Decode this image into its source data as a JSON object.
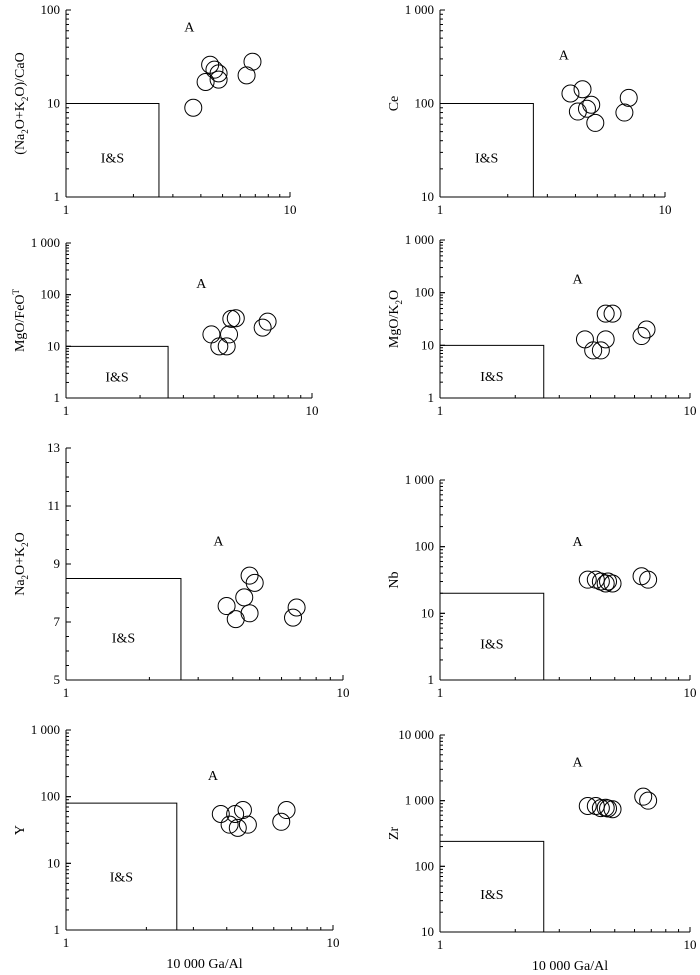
{
  "chart_data": [
    {
      "type": "scatter",
      "x_scale": "log",
      "y_scale": "log",
      "xlim": [
        1,
        10
      ],
      "ylim": [
        1,
        100
      ],
      "x_ticks": [
        "1",
        "10"
      ],
      "y_ticks": [
        "1",
        "10",
        "100"
      ],
      "xlabel": "",
      "ylabel_html": "(Na<tspan dy='4' font-size='9'>2</tspan><tspan dy='-4'>O+K</tspan><tspan dy='4' font-size='9'>2</tspan><tspan dy='-4'>O)/CaO</tspan>",
      "ylabel": "(Na2O+K2O)/CaO",
      "field_box": {
        "x": [
          1,
          2.6
        ],
        "y": [
          1,
          10
        ]
      },
      "region_labels": {
        "inside": "I&S",
        "outside": "A"
      },
      "points": [
        [
          3.7,
          9
        ],
        [
          4.2,
          17
        ],
        [
          4.4,
          26
        ],
        [
          4.6,
          23
        ],
        [
          4.8,
          18
        ],
        [
          4.8,
          21
        ],
        [
          6.4,
          20
        ],
        [
          6.8,
          28
        ]
      ]
    },
    {
      "type": "scatter",
      "x_scale": "log",
      "y_scale": "log",
      "xlim": [
        1,
        10
      ],
      "ylim": [
        10,
        1000
      ],
      "x_ticks": [
        "1",
        "10"
      ],
      "y_ticks": [
        "10",
        "100",
        "1 000"
      ],
      "xlabel": "",
      "ylabel": "Ce",
      "field_box": {
        "x": [
          1,
          2.6
        ],
        "y": [
          10,
          100
        ]
      },
      "region_labels": {
        "inside": "I&S",
        "outside": "A"
      },
      "points": [
        [
          3.8,
          128
        ],
        [
          4.1,
          82
        ],
        [
          4.3,
          142
        ],
        [
          4.5,
          88
        ],
        [
          4.7,
          97
        ],
        [
          4.9,
          62
        ],
        [
          6.6,
          80
        ],
        [
          6.9,
          115
        ]
      ]
    },
    {
      "type": "scatter",
      "x_scale": "log",
      "y_scale": "log",
      "xlim": [
        1,
        10
      ],
      "ylim": [
        1,
        1000
      ],
      "x_ticks": [
        "1",
        "10"
      ],
      "y_ticks": [
        "1",
        "10",
        "100",
        "1 000"
      ],
      "xlabel": "",
      "ylabel_html": "MgO/FeO<tspan dy='-5' font-size='9'>T</tspan>",
      "ylabel": "MgO/FeOT",
      "field_box": {
        "x": [
          1,
          2.6
        ],
        "y": [
          1,
          10
        ]
      },
      "region_labels": {
        "inside": "I&S",
        "outside": "A"
      },
      "points": [
        [
          3.9,
          17
        ],
        [
          4.2,
          10
        ],
        [
          4.5,
          10
        ],
        [
          4.6,
          17
        ],
        [
          4.7,
          34
        ],
        [
          4.9,
          35
        ],
        [
          6.3,
          23
        ],
        [
          6.6,
          30
        ]
      ]
    },
    {
      "type": "scatter",
      "x_scale": "log",
      "y_scale": "log",
      "xlim": [
        1,
        10
      ],
      "ylim": [
        1,
        1000
      ],
      "x_ticks": [
        "1",
        "10"
      ],
      "y_ticks": [
        "1",
        "10",
        "100",
        "1 000"
      ],
      "xlabel": "",
      "ylabel_html": "MgO/K<tspan dy='4' font-size='9'>2</tspan><tspan dy='-4'>O</tspan>",
      "ylabel": "MgO/K2O",
      "field_box": {
        "x": [
          1,
          2.6
        ],
        "y": [
          1,
          10
        ]
      },
      "region_labels": {
        "inside": "I&S",
        "outside": "A"
      },
      "points": [
        [
          3.8,
          13
        ],
        [
          4.1,
          8
        ],
        [
          4.4,
          8
        ],
        [
          4.6,
          13
        ],
        [
          4.6,
          40
        ],
        [
          4.9,
          40
        ],
        [
          6.4,
          15
        ],
        [
          6.7,
          20
        ]
      ]
    },
    {
      "type": "scatter",
      "x_scale": "log",
      "y_scale": "linear",
      "xlim": [
        1,
        10
      ],
      "ylim": [
        5,
        13
      ],
      "x_ticks": [
        "1",
        "10"
      ],
      "y_ticks": [
        "5",
        "7",
        "9",
        "11",
        "13"
      ],
      "xlabel": "",
      "ylabel_html": "Na<tspan dy='4' font-size='9'>2</tspan><tspan dy='-4'>O+K</tspan><tspan dy='4' font-size='9'>2</tspan><tspan dy='-4'>O</tspan>",
      "ylabel": "Na2O+K2O",
      "field_box": {
        "x": [
          1,
          2.6
        ],
        "y": [
          5,
          8.5
        ]
      },
      "region_labels": {
        "inside": "I&S",
        "outside": "A"
      },
      "points": [
        [
          3.8,
          7.55
        ],
        [
          4.1,
          7.1
        ],
        [
          4.4,
          7.85
        ],
        [
          4.6,
          7.3
        ],
        [
          4.6,
          8.6
        ],
        [
          4.8,
          8.35
        ],
        [
          6.6,
          7.15
        ],
        [
          6.8,
          7.5
        ]
      ]
    },
    {
      "type": "scatter",
      "x_scale": "log",
      "y_scale": "log",
      "xlim": [
        1,
        10
      ],
      "ylim": [
        1,
        1000
      ],
      "x_ticks": [
        "1",
        "10"
      ],
      "y_ticks": [
        "1",
        "10",
        "100",
        "1 000"
      ],
      "xlabel": "",
      "ylabel": "Nb",
      "field_box": {
        "x": [
          1,
          2.6
        ],
        "y": [
          1,
          20
        ]
      },
      "region_labels": {
        "inside": "I&S",
        "outside": "A"
      },
      "points": [
        [
          3.9,
          32
        ],
        [
          4.2,
          32
        ],
        [
          4.4,
          30
        ],
        [
          4.6,
          28
        ],
        [
          4.7,
          30
        ],
        [
          4.9,
          28
        ],
        [
          6.4,
          36
        ],
        [
          6.8,
          32
        ]
      ]
    },
    {
      "type": "scatter",
      "x_scale": "log",
      "y_scale": "log",
      "xlim": [
        1,
        10
      ],
      "ylim": [
        1,
        1000
      ],
      "x_ticks": [
        "1",
        "10"
      ],
      "y_ticks": [
        "1",
        "10",
        "100",
        "1 000"
      ],
      "xlabel": "10 000 Ga/Al",
      "ylabel": "Y",
      "field_box": {
        "x": [
          1,
          2.6
        ],
        "y": [
          1,
          80
        ]
      },
      "region_labels": {
        "inside": "I&S",
        "outside": "A"
      },
      "points": [
        [
          3.8,
          55
        ],
        [
          4.1,
          38
        ],
        [
          4.3,
          55
        ],
        [
          4.4,
          34
        ],
        [
          4.6,
          63
        ],
        [
          4.8,
          38
        ],
        [
          6.4,
          42
        ],
        [
          6.7,
          63
        ]
      ]
    },
    {
      "type": "scatter",
      "x_scale": "log",
      "y_scale": "log",
      "xlim": [
        1,
        10
      ],
      "ylim": [
        10,
        10000
      ],
      "x_ticks": [
        "1",
        "10"
      ],
      "y_ticks": [
        "10",
        "100",
        "1 000",
        "10 000"
      ],
      "xlabel": "10 000 Ga/Al",
      "ylabel": "Zr",
      "field_box": {
        "x": [
          1,
          2.6
        ],
        "y": [
          10,
          240
        ]
      },
      "region_labels": {
        "inside": "I&S",
        "outside": "A"
      },
      "points": [
        [
          3.9,
          830
        ],
        [
          4.2,
          830
        ],
        [
          4.4,
          770
        ],
        [
          4.6,
          780
        ],
        [
          4.7,
          760
        ],
        [
          4.9,
          740
        ],
        [
          6.5,
          1150
        ],
        [
          6.8,
          1000
        ]
      ]
    }
  ]
}
